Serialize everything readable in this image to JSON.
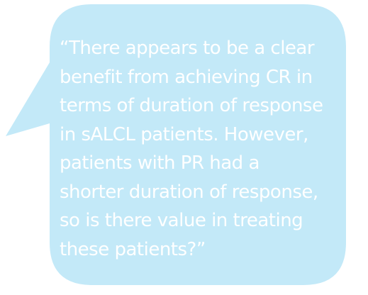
{
  "bubble": {
    "fill_color": "#c3e9f8",
    "text_color": "#ffffff"
  },
  "quote": {
    "lines": [
      "“There appears to be a clear",
      "benefit from achieving CR in",
      "terms of duration of response",
      "in sALCL patients. However,",
      "patients with PR had a",
      "shorter duration of response,",
      "so is there value in treating",
      "these patients?”"
    ]
  }
}
